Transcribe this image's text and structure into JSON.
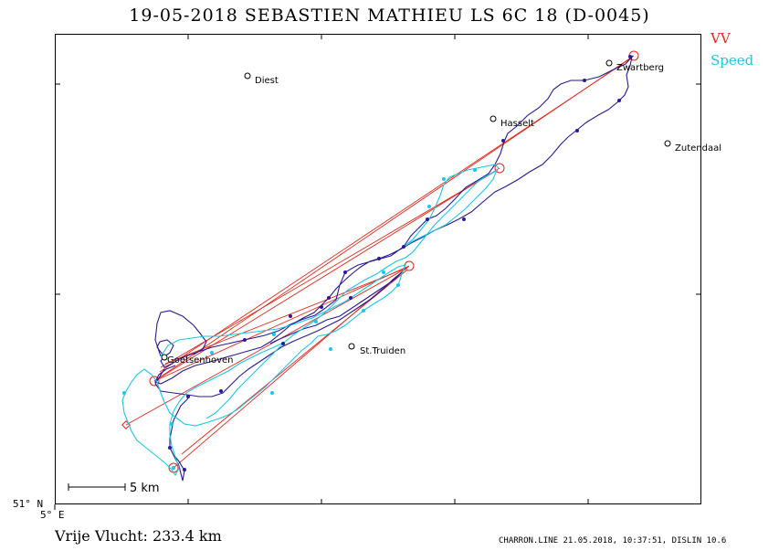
{
  "header": {
    "title": "19-05-2018   SEBASTIEN MATHIEU   LS 6C 18 (D-0045)"
  },
  "legend": {
    "items": [
      {
        "label": "VV",
        "color": "#e8261a"
      },
      {
        "label": "Speed",
        "color": "#18c8e8"
      }
    ]
  },
  "map": {
    "cities": [
      {
        "name": "Diest"
      },
      {
        "name": "Zwartberg"
      },
      {
        "name": "Hasselt"
      },
      {
        "name": "Zutendaal"
      },
      {
        "name": "St.Truiden"
      },
      {
        "name": "Goetsenhoven"
      }
    ],
    "scale_label": "5  km",
    "lat_label": "51° N",
    "lon_label": "5° E",
    "colors": {
      "track_dark": "#2a1a96",
      "track_speed": "#18c8e8",
      "task_line": "#e8261a"
    }
  },
  "summary": {
    "distance_text": "Vrije Vlucht:  233.4 km"
  },
  "footer": {
    "text": "CHARRON.LINE 21.05.2018, 10:37:51, DISLIN 10.6"
  }
}
